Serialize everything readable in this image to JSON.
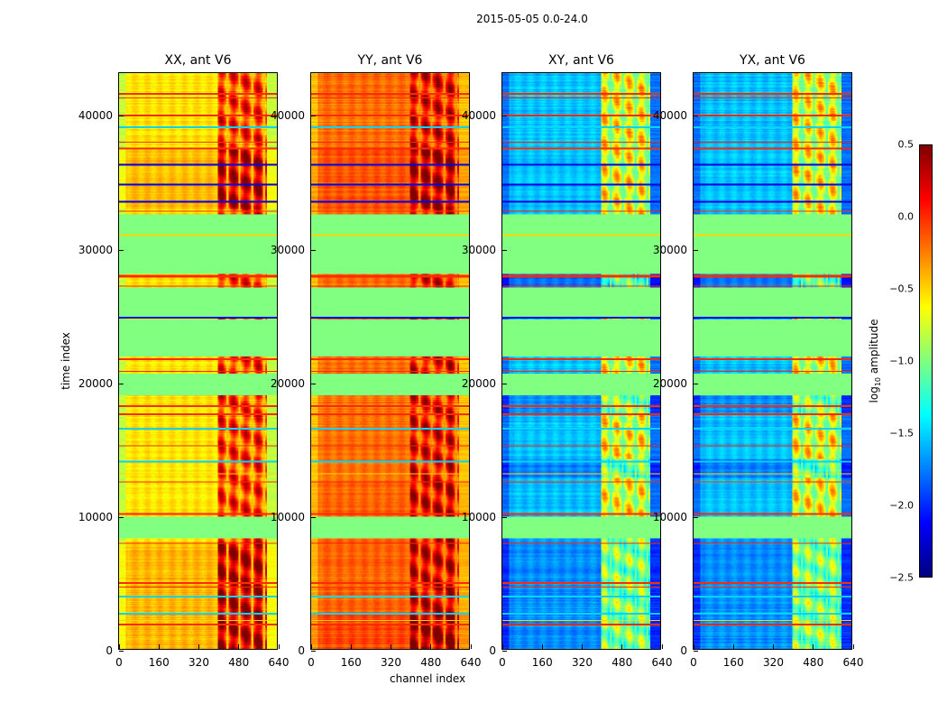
{
  "figure": {
    "suptitle": "2015-05-05 0.0-24.0",
    "xlabel": "channel index",
    "ylabel": "time index"
  },
  "chart_data": {
    "type": "heatmap",
    "xlim": [
      0,
      640
    ],
    "ylim": [
      0,
      43200
    ],
    "xticks": [
      "0",
      "160",
      "320",
      "480",
      "640"
    ],
    "yticks": [
      "0",
      "10000",
      "20000",
      "30000",
      "40000"
    ],
    "colorbar": {
      "label_prefix": "log",
      "label_sub": "10",
      "label_suffix": " amplitude",
      "range": [
        -2.5,
        0.5
      ],
      "ticks": [
        "0.5",
        "0.0",
        "−0.5",
        "−1.0",
        "−1.5",
        "−2.0",
        "−2.5"
      ]
    },
    "flagged_time_ranges": [
      [
        8300,
        9900
      ],
      [
        19000,
        20600
      ],
      [
        21900,
        24700
      ],
      [
        24900,
        27100
      ],
      [
        28100,
        32600
      ]
    ],
    "flag_lines": [
      [
        1800,
        0.0
      ],
      [
        2100,
        -0.5
      ],
      [
        2600,
        -1.5
      ],
      [
        3900,
        -1.5
      ],
      [
        4600,
        0.0
      ],
      [
        4900,
        0.0
      ],
      [
        7900,
        0.0
      ],
      [
        10100,
        0.0
      ],
      [
        12500,
        0.0
      ],
      [
        13100,
        -0.5
      ],
      [
        14000,
        -1.5
      ],
      [
        15200,
        0.0
      ],
      [
        16500,
        -1.5
      ],
      [
        17600,
        0.0
      ],
      [
        18200,
        0.0
      ],
      [
        20800,
        0.0
      ],
      [
        21700,
        0.0
      ],
      [
        24800,
        -2.2
      ],
      [
        27200,
        0.0
      ],
      [
        27900,
        0.0
      ],
      [
        28000,
        0.0
      ],
      [
        31000,
        -0.5
      ],
      [
        32800,
        0.0
      ],
      [
        33500,
        -2.2
      ],
      [
        34800,
        -2.2
      ],
      [
        36300,
        -2.2
      ],
      [
        37500,
        0.0
      ],
      [
        38000,
        0.0
      ],
      [
        39100,
        -1.5
      ],
      [
        40000,
        0.0
      ],
      [
        41300,
        0.0
      ],
      [
        41600,
        0.0
      ]
    ],
    "panels": [
      {
        "title": "XX, ant V6",
        "base_low": -0.55,
        "base_high": -0.1,
        "edge": -0.8,
        "dark_times": [
          [
            0,
            8000,
            0.35
          ],
          [
            33000,
            37500,
            0.3
          ]
        ]
      },
      {
        "title": "YY, ant V6",
        "base_low": -0.2,
        "base_high": 0.05,
        "edge": -0.45,
        "dark_times": [
          [
            2600,
            12600,
            0.1
          ],
          [
            0,
            2600,
            0.3
          ],
          [
            33000,
            37500,
            0.2
          ]
        ]
      },
      {
        "title": "XY, ant V6",
        "base_low": -1.55,
        "base_high": -0.7,
        "edge": -1.8,
        "dark_times": [
          [
            0,
            8300,
            -0.4
          ],
          [
            26000,
            28100,
            -0.6
          ],
          [
            12800,
            14200,
            -0.5
          ],
          [
            17500,
            19000,
            -0.4
          ]
        ]
      },
      {
        "title": "YX, ant V6",
        "base_low": -1.55,
        "base_high": -0.7,
        "edge": -1.8,
        "dark_times": [
          [
            0,
            8300,
            -0.4
          ],
          [
            26000,
            28100,
            -0.6
          ],
          [
            12800,
            14200,
            -0.5
          ],
          [
            17500,
            19000,
            -0.4
          ]
        ]
      }
    ]
  }
}
